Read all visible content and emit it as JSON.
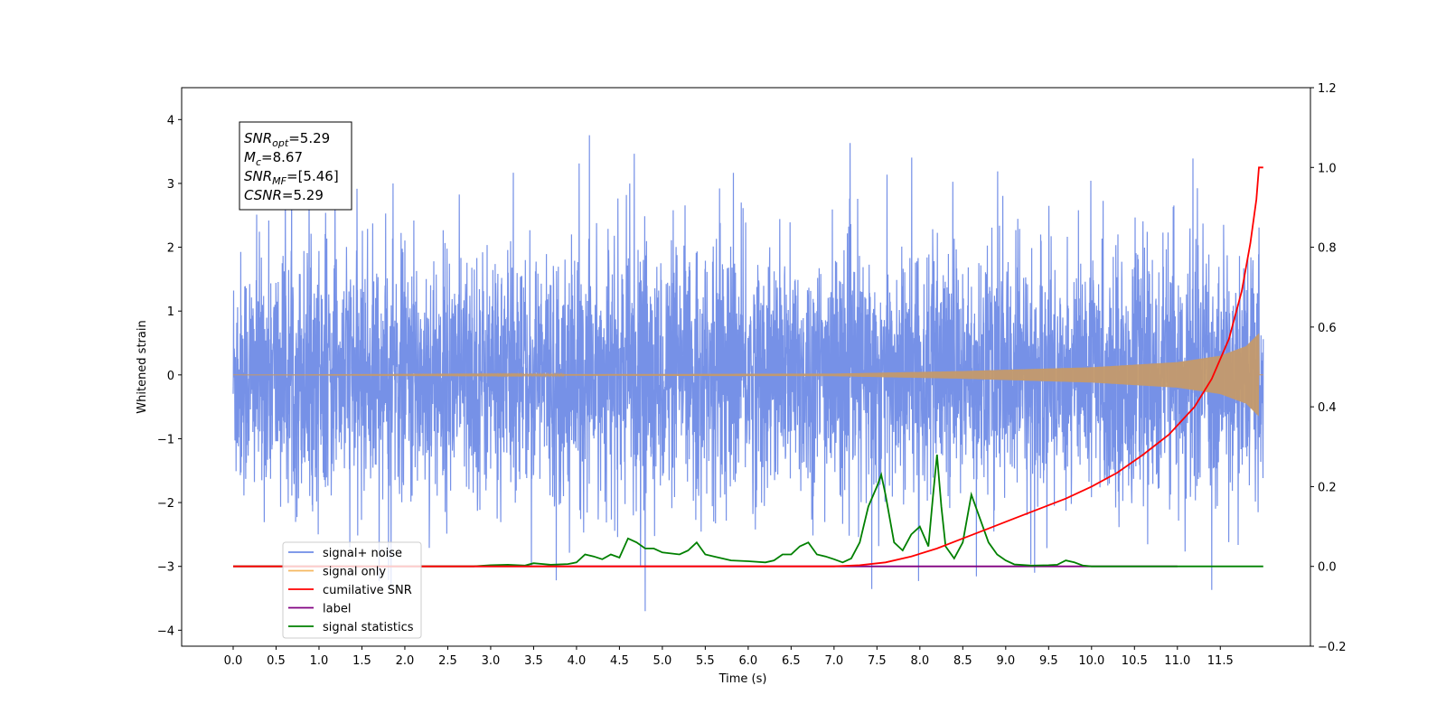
{
  "chart_data": {
    "type": "line",
    "xlabel": "Time (s)",
    "ylabel": "Whitened strain",
    "xlim": [
      -0.6,
      12.55
    ],
    "ylim": [
      -4.25,
      4.5
    ],
    "y2lim": [
      -0.2,
      1.2
    ],
    "x_ticks": [
      "0.0",
      "0.5",
      "1.0",
      "1.5",
      "2.0",
      "2.5",
      "3.0",
      "3.5",
      "4.0",
      "4.5",
      "5.0",
      "5.5",
      "6.0",
      "6.5",
      "7.0",
      "7.5",
      "8.0",
      "8.5",
      "9.0",
      "9.5",
      "10.0",
      "10.5",
      "11.0",
      "11.5"
    ],
    "y_ticks": [
      "−4",
      "−3",
      "−2",
      "−1",
      "0",
      "1",
      "2",
      "3",
      "4"
    ],
    "y2_ticks": [
      "−0.2",
      "0.0",
      "0.2",
      "0.4",
      "0.6",
      "0.8",
      "1.0",
      "1.2"
    ],
    "annotation": {
      "lines": [
        {
          "var": "SNR",
          "sub": "opt",
          "value": "=5.29"
        },
        {
          "var": "M",
          "sub": "c",
          "value": "=8.67"
        },
        {
          "var": "SNR",
          "sub": "MF",
          "value": "=[5.46]"
        },
        {
          "var": "CSNR",
          "sub": "",
          "value": "=5.29"
        }
      ]
    },
    "legend": {
      "placement": "lower-left",
      "entries": [
        {
          "label": "signal+ noise",
          "color": "#6f8be6"
        },
        {
          "label": "signal only",
          "color": "#f5b860"
        },
        {
          "label": "cumilative SNR",
          "color": "#ff0000"
        },
        {
          "label": "label",
          "color": "#800080"
        },
        {
          "label": "signal statistics",
          "color": "#008000"
        }
      ]
    },
    "series": [
      {
        "name": "signal+ noise",
        "axis": "left",
        "color": "#6f8be6",
        "range": [
          0.0,
          12.0
        ],
        "approx_std": 0.95,
        "approx_extremes": [
          -3.7,
          4.1
        ]
      },
      {
        "name": "signal only",
        "axis": "left",
        "color": "#c49a6c",
        "range": [
          0.0,
          12.0
        ],
        "envelope": [
          [
            0.0,
            0.0
          ],
          [
            7.0,
            0.02
          ],
          [
            8.5,
            0.06
          ],
          [
            10.0,
            0.12
          ],
          [
            11.0,
            0.2
          ],
          [
            11.5,
            0.3
          ],
          [
            11.8,
            0.45
          ],
          [
            11.95,
            0.65
          ]
        ]
      },
      {
        "name": "cumilative SNR",
        "axis": "right",
        "color": "#ff0000",
        "x": [
          0.0,
          7.0,
          7.3,
          7.6,
          7.9,
          8.2,
          8.5,
          8.8,
          9.1,
          9.4,
          9.7,
          10.0,
          10.3,
          10.6,
          10.9,
          11.2,
          11.4,
          11.6,
          11.75,
          11.85,
          11.92,
          11.95,
          12.0
        ],
        "y": [
          0.0,
          0.0,
          0.003,
          0.01,
          0.025,
          0.045,
          0.07,
          0.095,
          0.12,
          0.145,
          0.17,
          0.2,
          0.235,
          0.28,
          0.33,
          0.4,
          0.47,
          0.57,
          0.69,
          0.81,
          0.92,
          1.0,
          1.0
        ]
      },
      {
        "name": "label",
        "axis": "right",
        "color": "#800080",
        "x": [
          0.0,
          11.0
        ],
        "y": [
          0.0,
          0.0
        ]
      },
      {
        "name": "signal statistics",
        "axis": "right",
        "color": "#008000",
        "x": [
          0.0,
          2.8,
          3.0,
          3.2,
          3.4,
          3.5,
          3.7,
          3.9,
          4.0,
          4.1,
          4.2,
          4.3,
          4.4,
          4.5,
          4.6,
          4.7,
          4.8,
          4.9,
          5.0,
          5.2,
          5.3,
          5.4,
          5.5,
          5.6,
          5.8,
          6.0,
          6.2,
          6.3,
          6.4,
          6.5,
          6.6,
          6.7,
          6.8,
          6.9,
          7.0,
          7.1,
          7.2,
          7.3,
          7.4,
          7.5,
          7.55,
          7.6,
          7.7,
          7.8,
          7.9,
          8.0,
          8.1,
          8.15,
          8.2,
          8.25,
          8.3,
          8.4,
          8.5,
          8.6,
          8.7,
          8.8,
          8.9,
          9.0,
          9.1,
          9.3,
          9.5,
          9.6,
          9.7,
          9.8,
          9.9,
          10.0,
          12.0
        ],
        "y": [
          0.0,
          0.0,
          0.003,
          0.004,
          0.002,
          0.008,
          0.004,
          0.006,
          0.01,
          0.03,
          0.025,
          0.018,
          0.03,
          0.022,
          0.07,
          0.06,
          0.045,
          0.045,
          0.035,
          0.03,
          0.04,
          0.06,
          0.03,
          0.025,
          0.015,
          0.013,
          0.01,
          0.015,
          0.03,
          0.03,
          0.05,
          0.06,
          0.03,
          0.025,
          0.018,
          0.01,
          0.02,
          0.06,
          0.15,
          0.2,
          0.23,
          0.18,
          0.06,
          0.04,
          0.08,
          0.1,
          0.05,
          0.17,
          0.28,
          0.15,
          0.05,
          0.02,
          0.06,
          0.18,
          0.12,
          0.06,
          0.03,
          0.015,
          0.005,
          0.002,
          0.003,
          0.004,
          0.015,
          0.01,
          0.002,
          0.0,
          0.0
        ]
      }
    ]
  }
}
